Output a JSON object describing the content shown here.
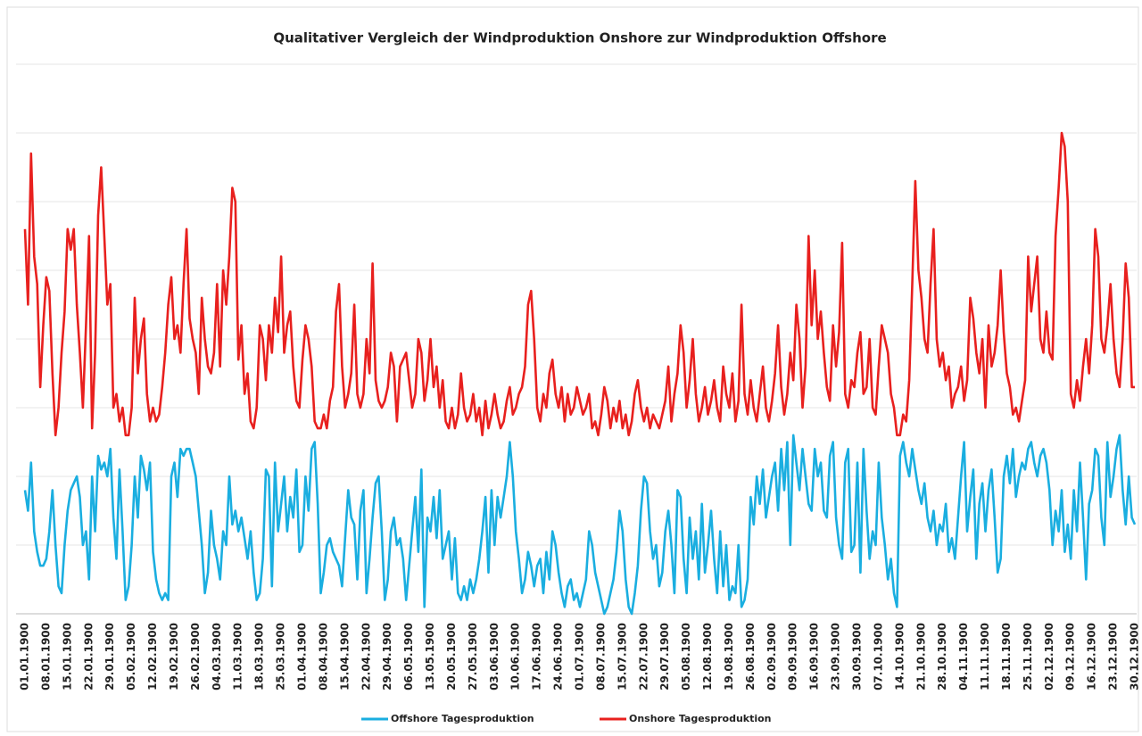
{
  "chart_data": {
    "type": "line",
    "title": "Qualitativer Vergleich der Windproduktion  Onshore zur Windproduktion  Offshore",
    "categories": [
      "01.01.1900",
      null,
      null,
      null,
      null,
      null,
      null,
      "08.01.1900",
      null,
      null,
      null,
      null,
      null,
      null,
      "15.01.1900",
      null,
      null,
      null,
      null,
      null,
      null,
      "22.01.1900",
      null,
      null,
      null,
      null,
      null,
      null,
      "29.01.1900",
      null,
      null,
      null,
      null,
      null,
      null,
      "05.02.1900",
      null,
      null,
      null,
      null,
      null,
      null,
      "12.02.1900",
      null,
      null,
      null,
      null,
      null,
      null,
      "19.02.1900",
      null,
      null,
      null,
      null,
      null,
      null,
      "26.02.1900",
      null,
      null,
      null,
      null,
      null,
      null,
      "04.03.1900",
      null,
      null,
      null,
      null,
      null,
      null,
      "11.03.1900",
      null,
      null,
      null,
      null,
      null,
      null,
      "18.03.1900",
      null,
      null,
      null,
      null,
      null,
      null,
      "25.03.1900",
      null,
      null,
      null,
      null,
      null,
      null,
      "01.04.1900",
      null,
      null,
      null,
      null,
      null,
      null,
      "08.04.1900",
      null,
      null,
      null,
      null,
      null,
      null,
      "15.04.1900",
      null,
      null,
      null,
      null,
      null,
      null,
      "22.04.1900",
      null,
      null,
      null,
      null,
      null,
      null,
      "29.04.1900",
      null,
      null,
      null,
      null,
      null,
      null,
      "06.05.1900",
      null,
      null,
      null,
      null,
      null,
      null,
      "13.05.1900",
      null,
      null,
      null,
      null,
      null,
      null,
      "20.05.1900",
      null,
      null,
      null,
      null,
      null,
      null,
      "27.05.1900",
      null,
      null,
      null,
      null,
      null,
      null,
      "03.06.1900",
      null,
      null,
      null,
      null,
      null,
      null,
      "10.06.1900",
      null,
      null,
      null,
      null,
      null,
      null,
      "17.06.1900",
      null,
      null,
      null,
      null,
      null,
      null,
      "24.06.1900",
      null,
      null,
      null,
      null,
      null,
      null,
      "01.07.1900",
      null,
      null,
      null,
      null,
      null,
      null,
      "08.07.1900",
      null,
      null,
      null,
      null,
      null,
      null,
      "15.07.1900",
      null,
      null,
      null,
      null,
      null,
      null,
      "22.07.1900",
      null,
      null,
      null,
      null,
      null,
      null,
      "29.07.1900",
      null,
      null,
      null,
      null,
      null,
      null,
      "05.08.1900",
      null,
      null,
      null,
      null,
      null,
      null,
      "12.08.1900",
      null,
      null,
      null,
      null,
      null,
      null,
      "19.08.1900",
      null,
      null,
      null,
      null,
      null,
      null,
      "26.08.1900",
      null,
      null,
      null,
      null,
      null,
      null,
      "02.09.1900",
      null,
      null,
      null,
      null,
      null,
      null,
      "09.09.1900",
      null,
      null,
      null,
      null,
      null,
      null,
      "16.09.1900",
      null,
      null,
      null,
      null,
      null,
      null,
      "23.09.1900",
      null,
      null,
      null,
      null,
      null,
      null,
      "30.09.1900",
      null,
      null,
      null,
      null,
      null,
      null,
      "07.10.1900",
      null,
      null,
      null,
      null,
      null,
      null,
      "14.10.1900",
      null,
      null,
      null,
      null,
      null,
      null,
      "21.10.1900",
      null,
      null,
      null,
      null,
      null,
      null,
      "28.10.1900",
      null,
      null,
      null,
      null,
      null,
      null,
      "04.11.1900",
      null,
      null,
      null,
      null,
      null,
      null,
      "11.11.1900",
      null,
      null,
      null,
      null,
      null,
      null,
      "18.11.1900",
      null,
      null,
      null,
      null,
      null,
      null,
      "25.11.1900",
      null,
      null,
      null,
      null,
      null,
      null,
      "02.12.1900",
      null,
      null,
      null,
      null,
      null,
      null,
      "09.12.1900",
      null,
      null,
      null,
      null,
      null,
      null,
      "16.12.1900",
      null,
      null,
      null,
      null,
      null,
      null,
      "23.12.1900",
      null,
      null,
      null,
      null,
      null,
      null,
      "30.12.1900"
    ],
    "series": [
      {
        "name": "Offshore Tagesproduktion",
        "color": "#1aaee0",
        "values": [
          18,
          15,
          22,
          12,
          9,
          7,
          7,
          8,
          12,
          18,
          10,
          4,
          3,
          10,
          15,
          18,
          19,
          20,
          17,
          10,
          12,
          5,
          20,
          12,
          23,
          21,
          22,
          20,
          24,
          14,
          8,
          21,
          12,
          2,
          4,
          10,
          20,
          14,
          23,
          21,
          18,
          22,
          9,
          5,
          3,
          2,
          3,
          2,
          20,
          22,
          17,
          24,
          23,
          24,
          24,
          22,
          20,
          15,
          10,
          3,
          6,
          15,
          10,
          8,
          5,
          12,
          10,
          20,
          13,
          15,
          12,
          14,
          11,
          8,
          12,
          6,
          2,
          3,
          8,
          21,
          20,
          4,
          22,
          12,
          16,
          20,
          12,
          17,
          14,
          21,
          9,
          10,
          20,
          15,
          24,
          25,
          16,
          3,
          6,
          10,
          11,
          9,
          8,
          7,
          4,
          11,
          18,
          14,
          13,
          5,
          15,
          18,
          3,
          8,
          14,
          19,
          20,
          12,
          2,
          5,
          12,
          14,
          10,
          11,
          8,
          2,
          7,
          12,
          17,
          9,
          21,
          1,
          14,
          12,
          17,
          11,
          18,
          8,
          10,
          12,
          5,
          11,
          3,
          2,
          4,
          2,
          5,
          3,
          5,
          8,
          12,
          17,
          6,
          18,
          10,
          17,
          14,
          17,
          20,
          25,
          20,
          12,
          8,
          3,
          5,
          9,
          7,
          4,
          7,
          8,
          3,
          9,
          5,
          12,
          10,
          6,
          3,
          1,
          4,
          5,
          2,
          3,
          1,
          3,
          5,
          12,
          10,
          6,
          4,
          2,
          0,
          1,
          3,
          5,
          9,
          15,
          12,
          5,
          1,
          0,
          3,
          7,
          15,
          20,
          19,
          12,
          8,
          10,
          4,
          6,
          12,
          15,
          10,
          3,
          18,
          17,
          8,
          3,
          14,
          8,
          12,
          5,
          16,
          6,
          10,
          15,
          8,
          3,
          12,
          4,
          10,
          2,
          4,
          3,
          10,
          1,
          2,
          5,
          17,
          13,
          20,
          16,
          21,
          14,
          17,
          20,
          22,
          15,
          24,
          18,
          25,
          10,
          26,
          22,
          18,
          24,
          20,
          16,
          15,
          24,
          20,
          22,
          15,
          14,
          23,
          25,
          14,
          10,
          8,
          22,
          24,
          9,
          10,
          22,
          6,
          24,
          15,
          8,
          12,
          10,
          22,
          14,
          10,
          5,
          8,
          3,
          1,
          23,
          25,
          22,
          20,
          24,
          21,
          18,
          16,
          19,
          14,
          12,
          15,
          10,
          13,
          12,
          16,
          9,
          11,
          8,
          14,
          20,
          25,
          12,
          17,
          21,
          8,
          16,
          19,
          12,
          18,
          21,
          14,
          6,
          8,
          20,
          23,
          19,
          24,
          17,
          20,
          22,
          21,
          24,
          25,
          22,
          20,
          23,
          24,
          22,
          18,
          10,
          15,
          12,
          18,
          9,
          13,
          8,
          18,
          12,
          22,
          14,
          5,
          16,
          18,
          24,
          23,
          14,
          10,
          25,
          17,
          20,
          24,
          26,
          18,
          13,
          20,
          14,
          13
        ]
      },
      {
        "name": "Onshore Tagesproduktion",
        "color": "#e8201e",
        "values": [
          56,
          45,
          67,
          52,
          48,
          33,
          42,
          49,
          47,
          35,
          26,
          30,
          38,
          44,
          56,
          53,
          56,
          45,
          38,
          30,
          42,
          55,
          27,
          38,
          58,
          65,
          55,
          45,
          48,
          30,
          32,
          28,
          30,
          26,
          26,
          30,
          46,
          35,
          40,
          43,
          32,
          28,
          30,
          28,
          29,
          33,
          38,
          45,
          49,
          40,
          42,
          38,
          48,
          56,
          43,
          40,
          38,
          32,
          46,
          40,
          36,
          35,
          38,
          48,
          36,
          50,
          45,
          52,
          62,
          60,
          37,
          42,
          32,
          35,
          28,
          27,
          30,
          42,
          40,
          34,
          42,
          38,
          46,
          41,
          52,
          38,
          42,
          44,
          36,
          31,
          30,
          37,
          42,
          40,
          36,
          28,
          27,
          27,
          29,
          27,
          31,
          33,
          44,
          48,
          36,
          30,
          32,
          35,
          45,
          32,
          30,
          32,
          40,
          35,
          51,
          34,
          31,
          30,
          31,
          33,
          38,
          36,
          28,
          36,
          37,
          38,
          34,
          30,
          32,
          40,
          38,
          31,
          34,
          40,
          33,
          36,
          30,
          34,
          28,
          27,
          30,
          27,
          29,
          35,
          30,
          28,
          29,
          32,
          28,
          30,
          26,
          31,
          27,
          29,
          32,
          29,
          27,
          28,
          31,
          33,
          29,
          30,
          32,
          33,
          36,
          45,
          47,
          40,
          30,
          28,
          32,
          30,
          35,
          37,
          32,
          30,
          33,
          28,
          32,
          29,
          30,
          33,
          31,
          29,
          30,
          32,
          27,
          28,
          26,
          29,
          33,
          31,
          27,
          30,
          28,
          31,
          27,
          29,
          26,
          28,
          32,
          34,
          30,
          28,
          30,
          27,
          29,
          28,
          27,
          29,
          31,
          36,
          28,
          32,
          35,
          42,
          38,
          30,
          34,
          40,
          32,
          28,
          30,
          33,
          29,
          31,
          34,
          30,
          28,
          36,
          32,
          30,
          35,
          28,
          31,
          45,
          32,
          29,
          34,
          30,
          28,
          32,
          36,
          30,
          28,
          31,
          35,
          42,
          33,
          29,
          32,
          38,
          34,
          45,
          40,
          30,
          36,
          55,
          42,
          50,
          40,
          44,
          38,
          33,
          31,
          42,
          36,
          41,
          54,
          32,
          30,
          34,
          33,
          38,
          41,
          32,
          33,
          40,
          30,
          29,
          36,
          42,
          40,
          38,
          32,
          30,
          26,
          26,
          29,
          28,
          34,
          48,
          63,
          50,
          46,
          40,
          38,
          48,
          56,
          40,
          36,
          38,
          34,
          36,
          30,
          32,
          33,
          36,
          31,
          34,
          46,
          43,
          38,
          35,
          40,
          30,
          42,
          36,
          38,
          42,
          50,
          41,
          35,
          33,
          29,
          30,
          28,
          31,
          34,
          52,
          44,
          48,
          52,
          40,
          38,
          44,
          38,
          37,
          55,
          62,
          70,
          68,
          60,
          32,
          30,
          34,
          31,
          36,
          40,
          35,
          42,
          56,
          52,
          40,
          38,
          42,
          48,
          40,
          35,
          33,
          40,
          51,
          46,
          33,
          33
        ]
      }
    ],
    "ylim": [
      0,
      80
    ],
    "grid": true
  }
}
